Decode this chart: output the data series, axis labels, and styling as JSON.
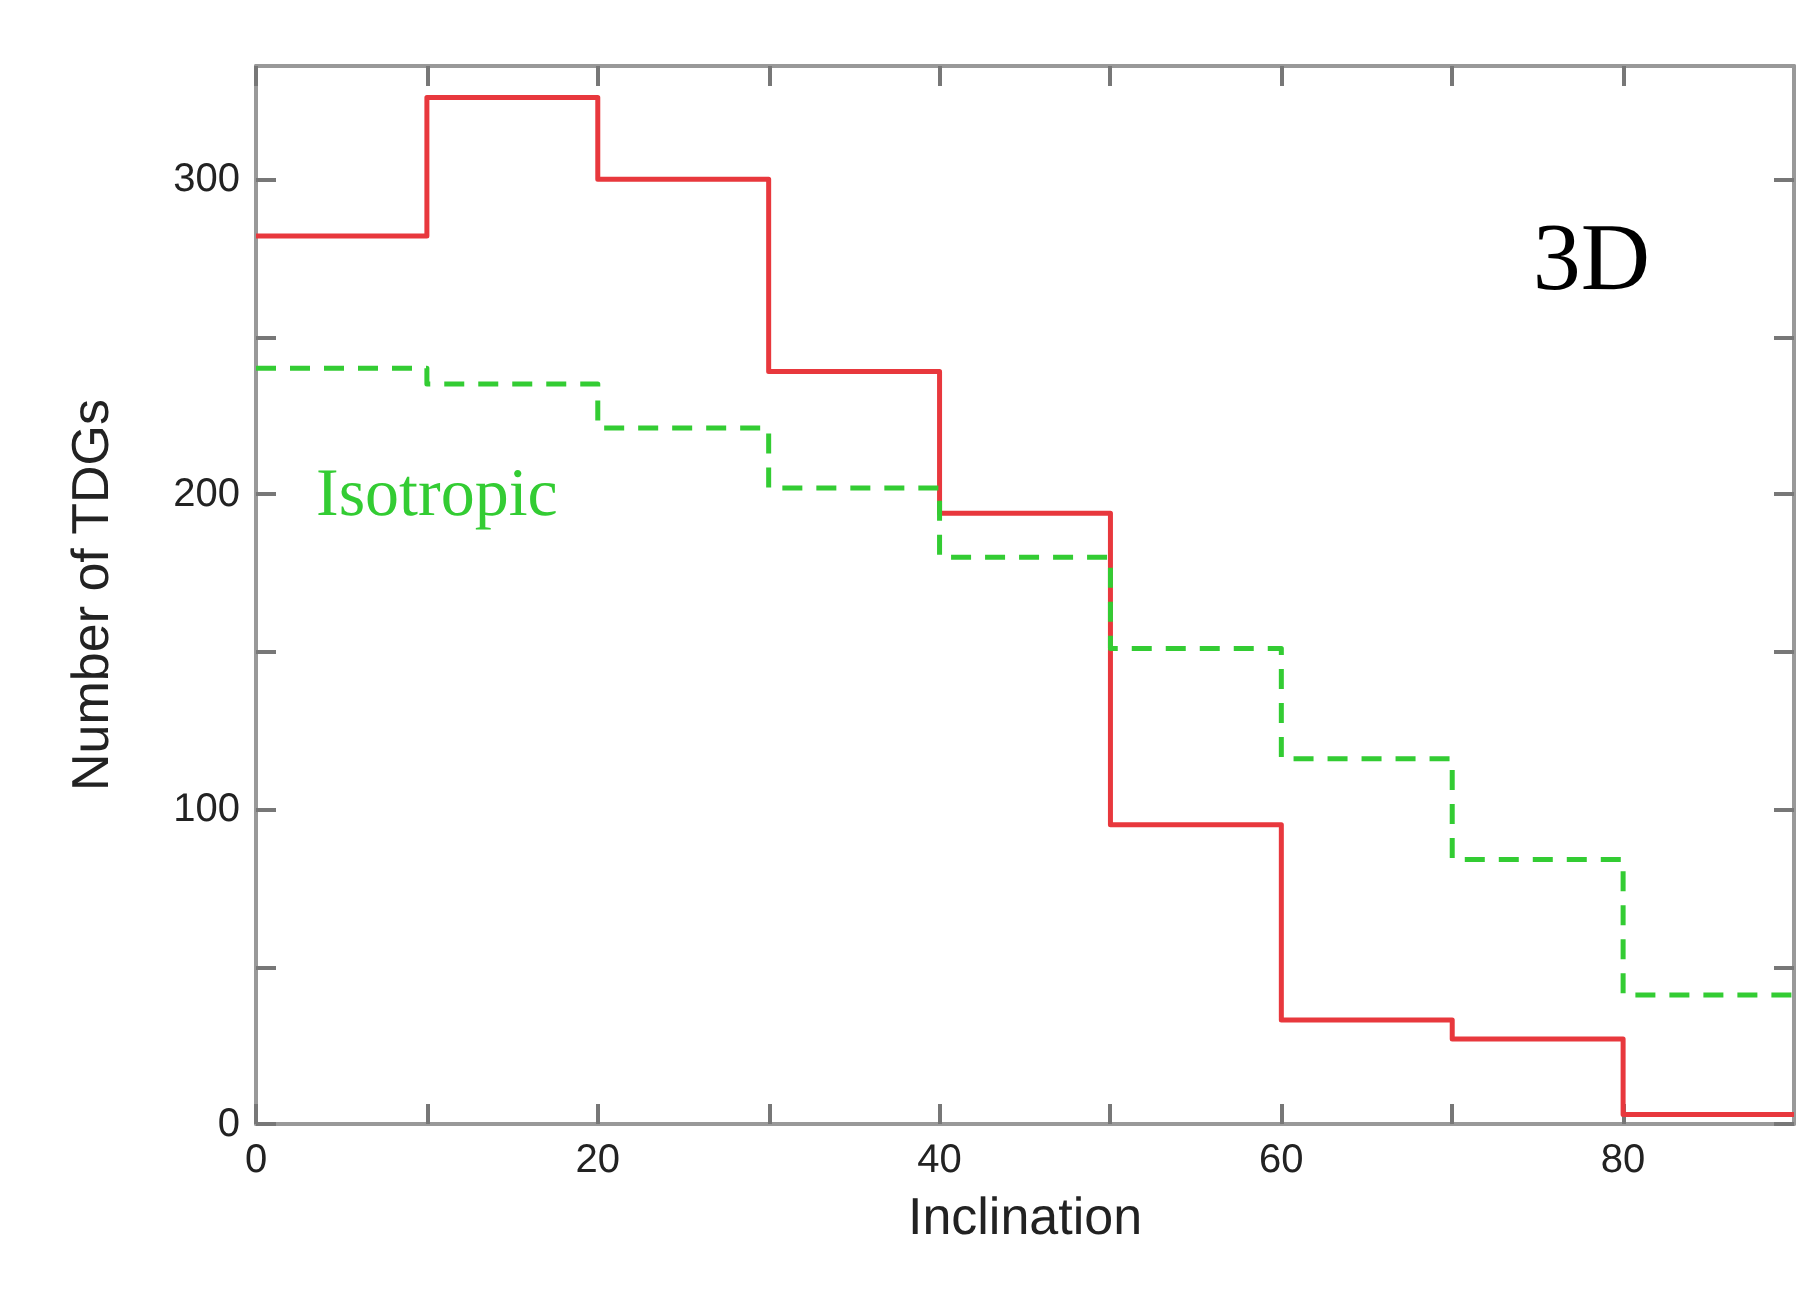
{
  "chart_data": {
    "type": "histogram",
    "xlabel": "Inclination",
    "ylabel": "Number of TDGs",
    "annotations": [
      "3D"
    ],
    "bins": [
      0,
      10,
      20,
      30,
      40,
      50,
      60,
      70,
      80,
      90
    ],
    "series": [
      {
        "color": "#e8383d",
        "line_style": "solid",
        "values": [
          282,
          326,
          300,
          239,
          194,
          95,
          33,
          27,
          3
        ]
      },
      {
        "name": "Isotropic",
        "color": "#33cc33",
        "line_style": "dashed",
        "values": [
          240,
          235,
          221,
          202,
          180,
          151,
          116,
          84,
          41
        ]
      }
    ],
    "xlim": [
      0,
      90
    ],
    "xticks": [
      0,
      {
        "value": 10,
        "label": null
      },
      20,
      {
        "value": 30,
        "label": null
      },
      40,
      {
        "value": 50,
        "label": null
      },
      60,
      {
        "value": 70,
        "label": null
      },
      80
    ],
    "ylim": [
      0,
      336
    ],
    "yticks": [
      0,
      {
        "value": 50,
        "label": null
      },
      100,
      {
        "value": 150,
        "label": null
      },
      200,
      {
        "value": 250,
        "label": null
      },
      300
    ],
    "legend": "left",
    "grid": false
  }
}
